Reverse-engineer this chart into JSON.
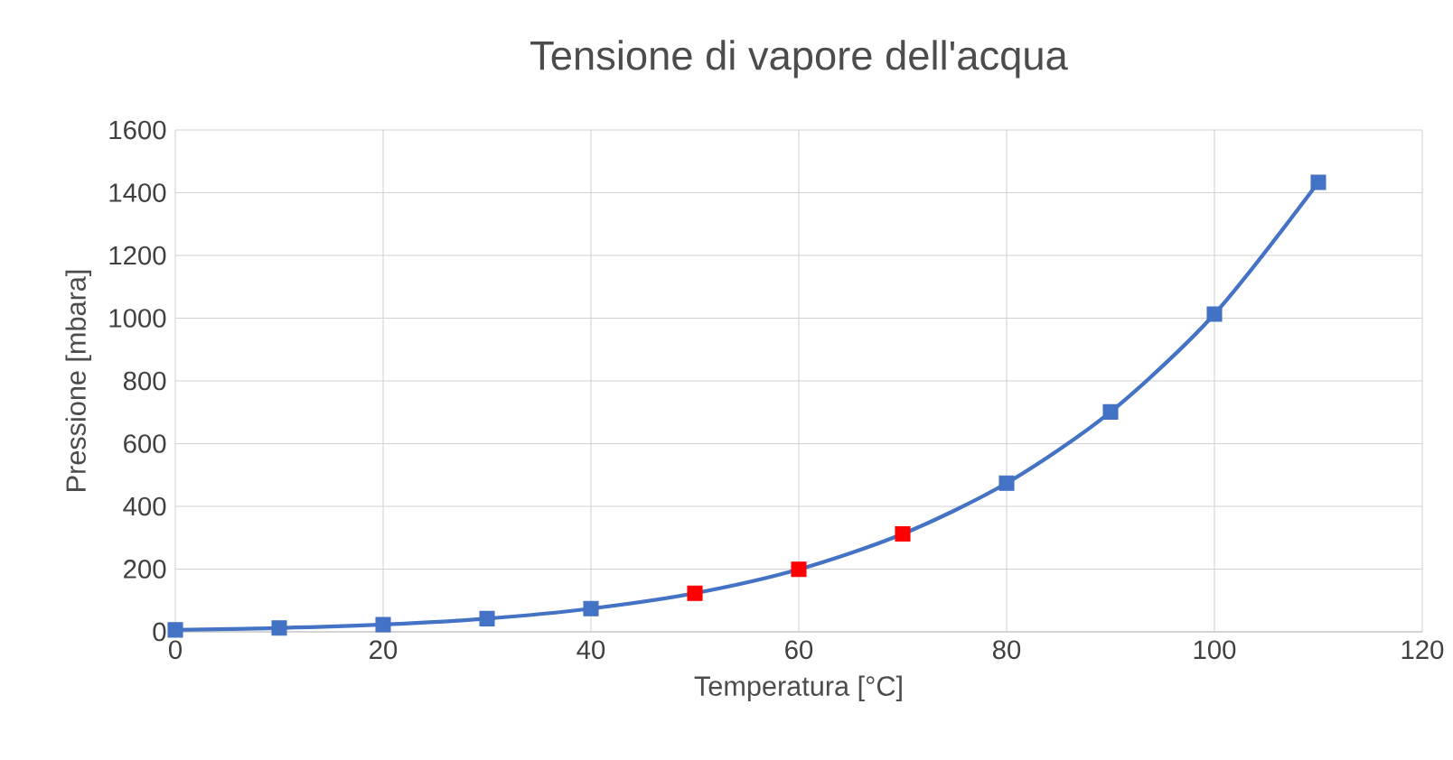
{
  "chart_data": {
    "type": "line",
    "title": "Tensione di vapore dell'acqua",
    "xlabel": "Temperatura [°C]",
    "ylabel": "Pressione [mbara]",
    "x": [
      0,
      10,
      20,
      30,
      40,
      50,
      60,
      70,
      80,
      90,
      100,
      110
    ],
    "series": [
      {
        "color": "#4472c4",
        "colors": [
          "#4472c4",
          "#4472c4",
          "#4472c4",
          "#4472c4",
          "#4472c4",
          "#ff0000",
          "#ff0000",
          "#ff0000",
          "#4472c4",
          "#4472c4",
          "#4472c4",
          "#4472c4"
        ],
        "values": [
          6,
          12,
          23,
          42,
          74,
          123,
          199,
          312,
          474,
          701,
          1013,
          1433
        ]
      }
    ],
    "xlim": [
      0,
      120
    ],
    "xticks": [
      0,
      20,
      40,
      60,
      80,
      100,
      120
    ],
    "ylim": [
      0,
      1600
    ],
    "yticks": [
      0,
      200,
      400,
      600,
      800,
      1000,
      1200,
      1400,
      1600
    ],
    "grid": true,
    "marker": "square",
    "line_style": "solid"
  }
}
